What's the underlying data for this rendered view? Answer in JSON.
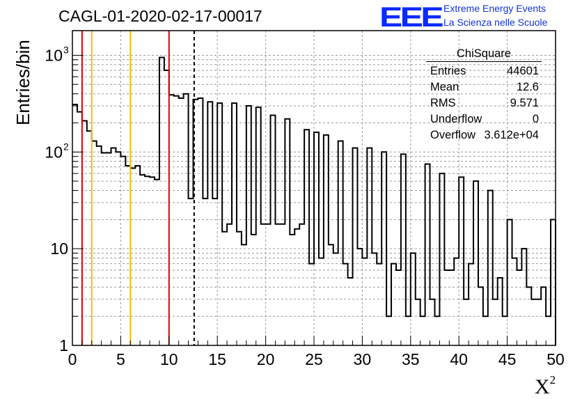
{
  "title": "CAGL-01-2020-02-17-00017",
  "logo": {
    "mark": "EEE",
    "line1": "Extreme Energy Events",
    "line2": "La Scienza nelle Scuole",
    "color": "#0a2bff"
  },
  "stats_box": {
    "name": "ChiSquare",
    "rows": [
      {
        "label": "Entries",
        "value": "44601"
      },
      {
        "label": "Mean",
        "value": "12.6"
      },
      {
        "label": "RMS",
        "value": "9.571"
      },
      {
        "label": "Underflow",
        "value": "0"
      },
      {
        "label": "Overflow",
        "value": "3.612e+04"
      }
    ]
  },
  "chart_data": {
    "type": "histogram",
    "title": "CAGL-01-2020-02-17-00017",
    "xlabel": "X",
    "xlabel_sup": "2",
    "ylabel": "Entries/bin",
    "xlim": [
      0,
      50
    ],
    "ylim": [
      1,
      1800
    ],
    "log_y": true,
    "grid": true,
    "bin_width": 0.5,
    "x_ticks": [
      "0",
      "5",
      "10",
      "15",
      "20",
      "25",
      "30",
      "35",
      "40",
      "45",
      "50"
    ],
    "y_ticks": [
      {
        "value": 1,
        "label": "1"
      },
      {
        "value": 10,
        "label": "10"
      },
      {
        "value": 100,
        "label": "10",
        "exp": "2"
      },
      {
        "value": 1000,
        "label": "10",
        "exp": "3"
      }
    ],
    "values": [
      310,
      260,
      210,
      165,
      130,
      115,
      98,
      98,
      110,
      100,
      90,
      72,
      68,
      72,
      58,
      56,
      55,
      52,
      950,
      700,
      390,
      380,
      360,
      400,
      33,
      350,
      360,
      33,
      330,
      33,
      320,
      15,
      18,
      320,
      15,
      11,
      300,
      14,
      290,
      18,
      18,
      240,
      18,
      18,
      220,
      14,
      16,
      18,
      170,
      7,
      160,
      8,
      150,
      11,
      9,
      130,
      7,
      5,
      110,
      10,
      8,
      110,
      9,
      7,
      100,
      2,
      7,
      6,
      95,
      2,
      9,
      3,
      2,
      75,
      3,
      2,
      60,
      6,
      6,
      8,
      55,
      3,
      7,
      50,
      4,
      2,
      40,
      3,
      5,
      2,
      20,
      8,
      6,
      10,
      4,
      3,
      3,
      4,
      2,
      20
    ],
    "vertical_lines": [
      {
        "x": 1,
        "color": "#e00000",
        "style": "solid"
      },
      {
        "x": 2,
        "color": "#f0c000",
        "style": "solid"
      },
      {
        "x": 6,
        "color": "#f0c000",
        "style": "solid"
      },
      {
        "x": 10,
        "color": "#e00000",
        "style": "solid"
      },
      {
        "x": 12.6,
        "color": "#000000",
        "style": "dashed"
      }
    ]
  }
}
